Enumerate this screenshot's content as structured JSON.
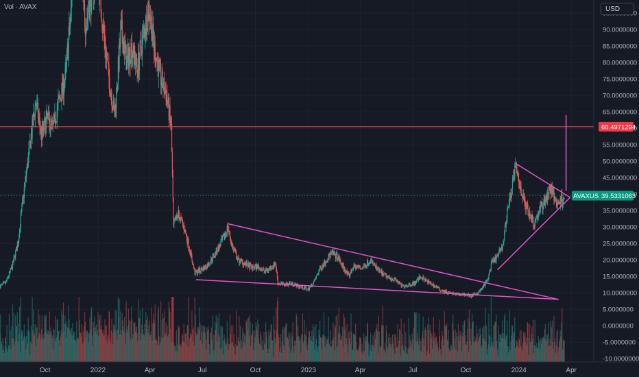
{
  "header": {
    "volume_label": "Vol · AVAX",
    "currency_button": "USD"
  },
  "colors": {
    "background": "#161a25",
    "up": "#26a69a",
    "down": "#ef5350",
    "trendline": "#e056c8",
    "level_line": "#f23645",
    "current_badge": "#089981",
    "level_badge": "#f23645"
  },
  "chart_data": {
    "type": "candlestick",
    "symbol": "AVAXUSD",
    "y_axis_ticks": [
      "95.0000000",
      "90.0000000",
      "85.0000000",
      "80.0000000",
      "75.0000000",
      "70.0000000",
      "65.0000000",
      "60.0000000",
      "55.0000000",
      "50.0000000",
      "45.0000000",
      "40.0000000",
      "35.0000000",
      "30.0000000",
      "25.0000000",
      "20.0000000",
      "15.0000000",
      "10.0000000",
      "5.0000000",
      "0.0000000",
      "-5.0000000",
      "-10.0000000"
    ],
    "y_axis_values": [
      95,
      90,
      85,
      80,
      75,
      70,
      65,
      60,
      55,
      50,
      45,
      40,
      35,
      30,
      25,
      20,
      15,
      10,
      5,
      0,
      -5,
      -10
    ],
    "ylim": [
      -11,
      99
    ],
    "x_axis_ticks": [
      {
        "label": "Oct",
        "date": "2021-10-01"
      },
      {
        "label": "2022",
        "date": "2022-01-01"
      },
      {
        "label": "Apr",
        "date": "2022-04-01"
      },
      {
        "label": "Jul",
        "date": "2022-07-01"
      },
      {
        "label": "Oct",
        "date": "2022-10-01"
      },
      {
        "label": "2023",
        "date": "2023-01-01"
      },
      {
        "label": "Apr",
        "date": "2023-04-01"
      },
      {
        "label": "Jul",
        "date": "2023-07-01"
      },
      {
        "label": "Oct",
        "date": "2023-10-01"
      },
      {
        "label": "2024",
        "date": "2024-01-01"
      },
      {
        "label": "Apr",
        "date": "2024-04-01"
      }
    ],
    "xlim": [
      "2021-07-15",
      "2024-05-10"
    ],
    "price_path": [
      [
        "2021-07-15",
        12
      ],
      [
        "2021-07-25",
        13
      ],
      [
        "2021-08-05",
        18
      ],
      [
        "2021-08-15",
        25
      ],
      [
        "2021-08-25",
        40
      ],
      [
        "2021-09-05",
        55
      ],
      [
        "2021-09-15",
        68
      ],
      [
        "2021-09-25",
        58
      ],
      [
        "2021-10-05",
        63
      ],
      [
        "2021-10-15",
        60
      ],
      [
        "2021-10-25",
        68
      ],
      [
        "2021-11-05",
        75
      ],
      [
        "2021-11-15",
        95
      ],
      [
        "2021-11-22",
        120
      ],
      [
        "2021-11-30",
        110
      ],
      [
        "2021-12-10",
        92
      ],
      [
        "2021-12-20",
        100
      ],
      [
        "2021-12-31",
        110
      ],
      [
        "2022-01-10",
        90
      ],
      [
        "2022-01-20",
        75
      ],
      [
        "2022-01-30",
        64
      ],
      [
        "2022-02-10",
        90
      ],
      [
        "2022-02-20",
        80
      ],
      [
        "2022-03-01",
        85
      ],
      [
        "2022-03-10",
        78
      ],
      [
        "2022-03-20",
        88
      ],
      [
        "2022-03-31",
        97
      ],
      [
        "2022-04-08",
        85
      ],
      [
        "2022-04-20",
        75
      ],
      [
        "2022-04-30",
        70
      ],
      [
        "2022-05-08",
        60
      ],
      [
        "2022-05-12",
        30
      ],
      [
        "2022-05-20",
        34
      ],
      [
        "2022-05-30",
        30
      ],
      [
        "2022-06-08",
        24
      ],
      [
        "2022-06-18",
        16
      ],
      [
        "2022-06-28",
        17
      ],
      [
        "2022-07-08",
        18
      ],
      [
        "2022-07-20",
        21
      ],
      [
        "2022-07-30",
        24
      ],
      [
        "2022-08-08",
        27
      ],
      [
        "2022-08-14",
        30
      ],
      [
        "2022-08-22",
        24
      ],
      [
        "2022-09-01",
        20
      ],
      [
        "2022-09-12",
        19
      ],
      [
        "2022-09-25",
        17.5
      ],
      [
        "2022-10-05",
        18
      ],
      [
        "2022-10-18",
        16.5
      ],
      [
        "2022-10-30",
        18
      ],
      [
        "2022-11-05",
        19
      ],
      [
        "2022-11-09",
        13
      ],
      [
        "2022-11-20",
        12.5
      ],
      [
        "2022-12-01",
        13
      ],
      [
        "2022-12-15",
        12
      ],
      [
        "2022-12-31",
        11
      ],
      [
        "2023-01-10",
        13
      ],
      [
        "2023-01-20",
        17
      ],
      [
        "2023-02-01",
        20
      ],
      [
        "2023-02-10",
        22
      ],
      [
        "2023-02-20",
        21
      ],
      [
        "2023-03-05",
        17
      ],
      [
        "2023-03-12",
        15
      ],
      [
        "2023-03-20",
        18
      ],
      [
        "2023-04-05",
        17.5
      ],
      [
        "2023-04-18",
        20
      ],
      [
        "2023-05-01",
        17
      ],
      [
        "2023-05-15",
        15
      ],
      [
        "2023-06-01",
        14
      ],
      [
        "2023-06-12",
        12
      ],
      [
        "2023-06-25",
        12.5
      ],
      [
        "2023-07-05",
        13
      ],
      [
        "2023-07-14",
        15
      ],
      [
        "2023-07-25",
        13.5
      ],
      [
        "2023-08-05",
        12.5
      ],
      [
        "2023-08-17",
        11
      ],
      [
        "2023-09-01",
        10
      ],
      [
        "2023-09-15",
        9.5
      ],
      [
        "2023-10-01",
        9.5
      ],
      [
        "2023-10-10",
        9
      ],
      [
        "2023-10-22",
        10
      ],
      [
        "2023-10-30",
        11.5
      ],
      [
        "2023-11-08",
        14
      ],
      [
        "2023-11-15",
        19
      ],
      [
        "2023-11-25",
        21
      ],
      [
        "2023-12-05",
        25
      ],
      [
        "2023-12-12",
        35
      ],
      [
        "2023-12-20",
        42
      ],
      [
        "2023-12-25",
        48
      ],
      [
        "2024-01-01",
        44
      ],
      [
        "2024-01-10",
        38
      ],
      [
        "2024-01-20",
        34
      ],
      [
        "2024-01-28",
        31
      ],
      [
        "2024-02-05",
        35
      ],
      [
        "2024-02-15",
        38
      ],
      [
        "2024-02-25",
        42
      ],
      [
        "2024-03-02",
        39
      ],
      [
        "2024-03-08",
        37
      ],
      [
        "2024-03-15",
        38.5
      ],
      [
        "2024-03-20",
        39.53
      ]
    ],
    "trendlines": [
      {
        "name": "wedge-upper",
        "from": [
          "2022-08-14",
          31
        ],
        "to": [
          "2024-03-10",
          8
        ]
      },
      {
        "name": "wedge-lower",
        "from": [
          "2022-06-20",
          14
        ],
        "to": [
          "2024-03-10",
          8
        ]
      },
      {
        "name": "triangle-upper",
        "from": [
          "2023-12-25",
          49.5
        ],
        "to": [
          "2024-03-30",
          39
        ]
      },
      {
        "name": "triangle-lower",
        "from": [
          "2023-11-25",
          17
        ],
        "to": [
          "2024-03-30",
          39
        ]
      },
      {
        "name": "target-projection",
        "from": [
          "2024-03-23",
          41
        ],
        "to": [
          "2024-03-23",
          64
        ]
      }
    ],
    "horizontal_levels": [
      {
        "name": "resistance",
        "value": 60.4971294,
        "label": "60.4971294"
      }
    ],
    "current_price": {
      "symbol": "AVAXUSD",
      "value": 39.5331063,
      "label": "39.5331063"
    }
  }
}
